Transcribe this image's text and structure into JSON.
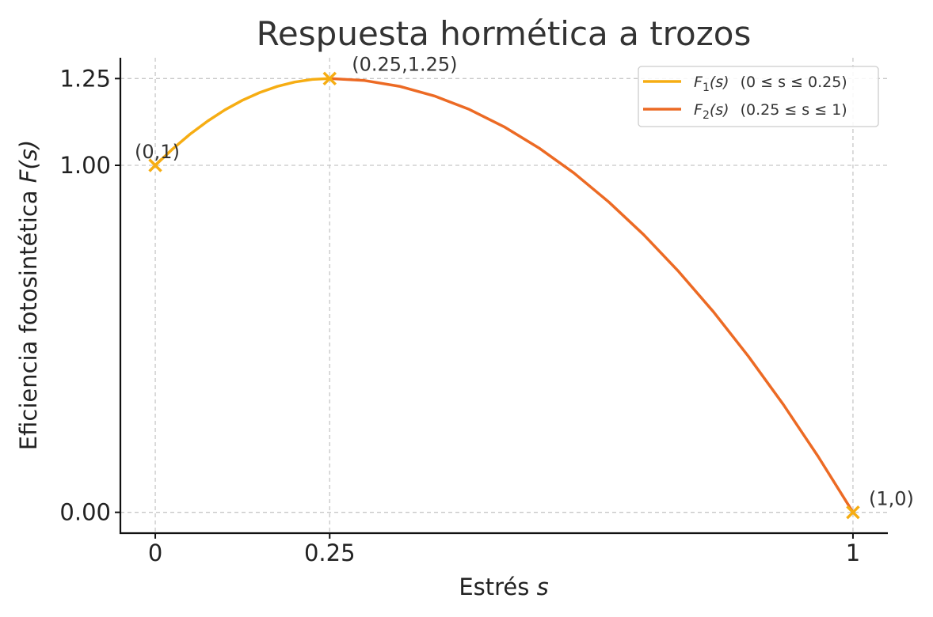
{
  "chart_data": {
    "type": "line",
    "title": "Respuesta hormética a trozos",
    "xlabel_text": "Estrés ",
    "xlabel_var": "s",
    "ylabel_text": "Eficiencia fotosintética ",
    "ylabel_var": "F(s)",
    "xlim": [
      -0.05,
      1.05
    ],
    "ylim": [
      -0.06,
      1.31
    ],
    "grid": true,
    "legend_position": "top-right",
    "x_ticks": [
      {
        "value": 0,
        "label": "0"
      },
      {
        "value": 0.25,
        "label": "0.25"
      },
      {
        "value": 1,
        "label": "1"
      }
    ],
    "y_ticks": [
      {
        "value": 0,
        "label": "0.00"
      },
      {
        "value": 1,
        "label": "1.00"
      },
      {
        "value": 1.25,
        "label": "1.25"
      }
    ],
    "series": [
      {
        "legend_func": "F",
        "legend_sub": "1",
        "legend_arg": "(s)",
        "legend_range": "(0 ≤ s ≤ 0.25)",
        "color": "#f6ad13",
        "x": [
          0,
          0.025,
          0.05,
          0.075,
          0.1,
          0.125,
          0.15,
          0.175,
          0.2,
          0.225,
          0.25
        ],
        "y": [
          1.0,
          1.0475,
          1.09,
          1.1275,
          1.16,
          1.1875,
          1.21,
          1.2275,
          1.24,
          1.2475,
          1.25
        ]
      },
      {
        "legend_func": "F",
        "legend_sub": "2",
        "legend_arg": "(s)",
        "legend_range": "(0.25 ≤ s ≤ 1)",
        "color": "#ec6a24",
        "x": [
          0.25,
          0.3,
          0.35,
          0.4,
          0.45,
          0.5,
          0.55,
          0.6,
          0.65,
          0.7,
          0.75,
          0.8,
          0.85,
          0.9,
          0.95,
          1.0
        ],
        "y": [
          1.25,
          1.2444,
          1.2278,
          1.2,
          1.1611,
          1.1111,
          1.05,
          0.9778,
          0.8944,
          0.8,
          0.6944,
          0.5778,
          0.45,
          0.3111,
          0.1611,
          0.0
        ]
      }
    ],
    "markers": {
      "color": "#f6ad13",
      "points": [
        {
          "x": 0,
          "y": 1,
          "label": "(0,1)"
        },
        {
          "x": 0.25,
          "y": 1.25,
          "label": "(0.25,1.25)"
        },
        {
          "x": 1,
          "y": 0,
          "label": "(1,0)"
        }
      ]
    }
  }
}
